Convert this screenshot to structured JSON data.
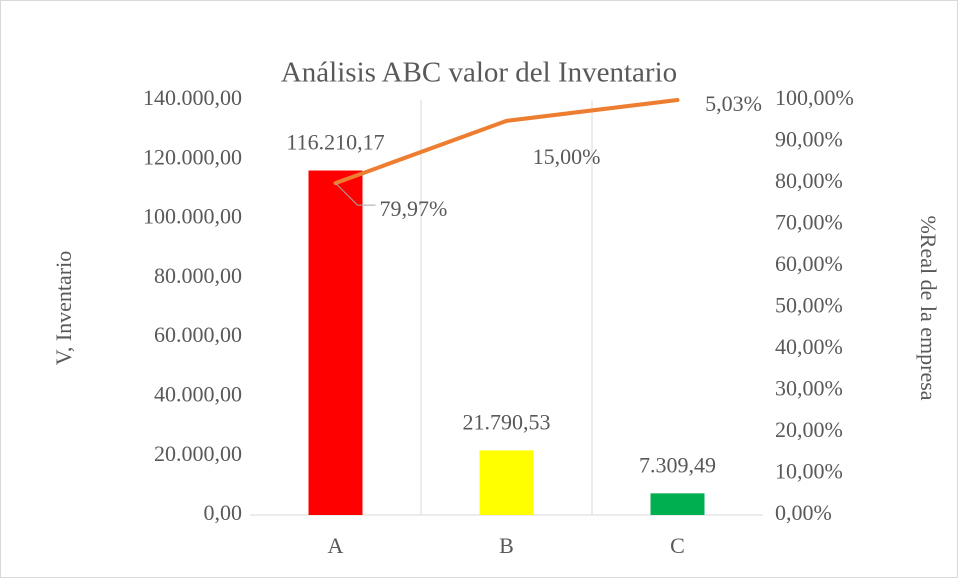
{
  "chart_data": {
    "type": "bar_line",
    "title": "Análisis ABC valor del Inventario",
    "y_label": "V, Inventario",
    "y2_label": "%Real de la empresa",
    "categories": [
      "A",
      "B",
      "C"
    ],
    "series": [
      {
        "name": "V, Inventario",
        "type": "bar",
        "colors": [
          "#ff0000",
          "#ffff00",
          "#00b050"
        ],
        "values": [
          116210.17,
          21790.53,
          7309.49
        ],
        "value_labels": [
          "116.210,17",
          "21.790,53",
          "7.309,49"
        ]
      },
      {
        "name": "%Real de la empresa",
        "type": "line",
        "axis": "y2",
        "color": "#ed7d31",
        "cumulative": true,
        "values": [
          79.97,
          15.0,
          5.03
        ],
        "value_labels": [
          "79,97%",
          "15,00%",
          "5,03%"
        ]
      }
    ],
    "ylim": [
      0,
      140000
    ],
    "yticks": [
      {
        "value": 0,
        "label": "0,00"
      },
      {
        "value": 20000,
        "label": "20.000,00"
      },
      {
        "value": 40000,
        "label": "40.000,00"
      },
      {
        "value": 60000,
        "label": "60.000,00"
      },
      {
        "value": 80000,
        "label": "80.000,00"
      },
      {
        "value": 100000,
        "label": "100.000,00"
      },
      {
        "value": 120000,
        "label": "120.000,00"
      },
      {
        "value": 140000,
        "label": "140.000,00"
      }
    ],
    "y2lim": [
      0,
      100
    ],
    "y2ticks": [
      {
        "value": 0,
        "label": "0,00%"
      },
      {
        "value": 10,
        "label": "10,00%"
      },
      {
        "value": 20,
        "label": "20,00%"
      },
      {
        "value": 30,
        "label": "30,00%"
      },
      {
        "value": 40,
        "label": "40,00%"
      },
      {
        "value": 50,
        "label": "50,00%"
      },
      {
        "value": 60,
        "label": "60,00%"
      },
      {
        "value": 70,
        "label": "70,00%"
      },
      {
        "value": 80,
        "label": "80,00%"
      },
      {
        "value": 90,
        "label": "90,00%"
      },
      {
        "value": 100,
        "label": "100,00%"
      }
    ],
    "grid": "vertical"
  }
}
